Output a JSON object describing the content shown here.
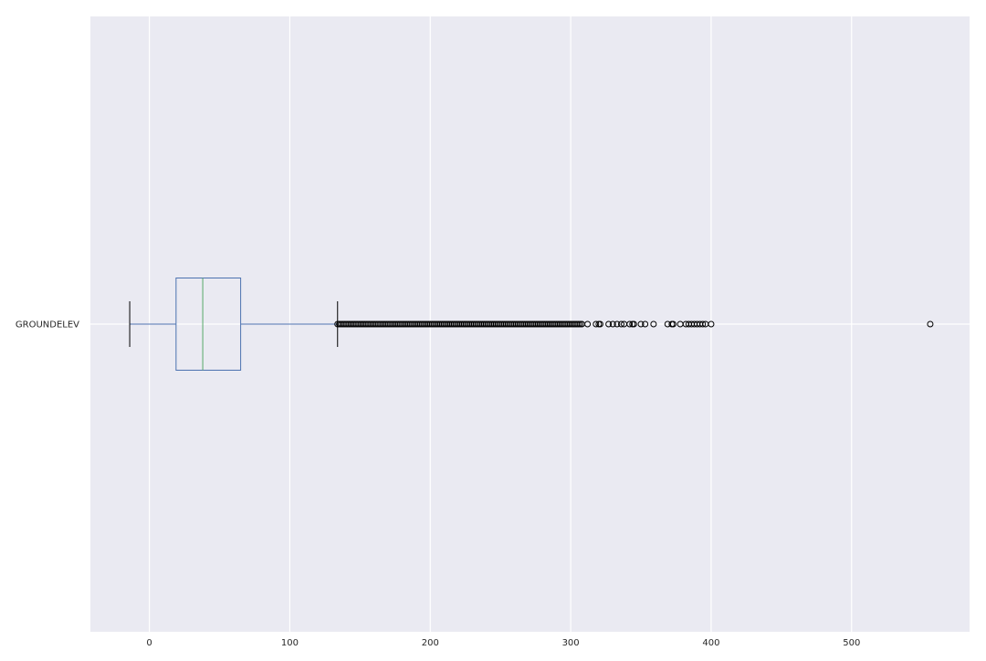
{
  "chart_data": {
    "type": "box",
    "orientation": "horizontal",
    "title": "",
    "xlabel": "",
    "ylabel": "",
    "xlim": [
      -42,
      584
    ],
    "xticks": [
      0,
      100,
      200,
      300,
      400,
      500
    ],
    "grid": true,
    "series": [
      {
        "name": "GROUNDELEV",
        "whisker_low": -14,
        "q1": 19,
        "median": 38,
        "q3": 65,
        "whisker_high": 134,
        "outliers_dense_range": [
          134,
          308
        ],
        "outliers": [
          312,
          318,
          320,
          321,
          327,
          330,
          333,
          336,
          338,
          342,
          344,
          345,
          350,
          353,
          359,
          369,
          372,
          373,
          378,
          382,
          384,
          386,
          388,
          390,
          392,
          394,
          396,
          400,
          556
        ]
      }
    ]
  },
  "colors": {
    "background": "#EAEAF2",
    "grid": "#FFFFFF",
    "box": "#4C72B0",
    "median": "#55A868",
    "whisker_cap": "#000000",
    "outlier_edge": "#000000"
  }
}
